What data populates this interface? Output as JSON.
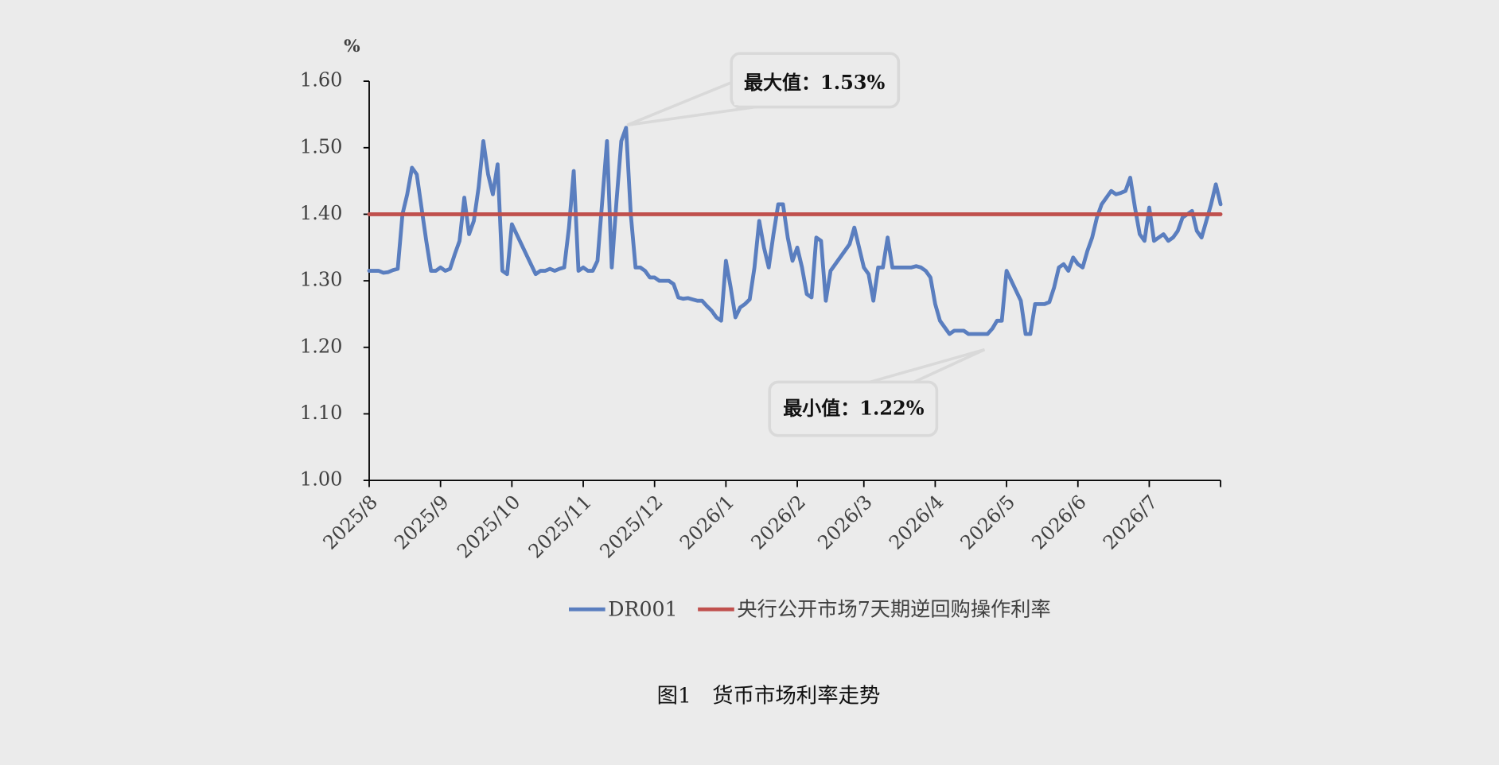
{
  "chart_data": {
    "type": "line",
    "title": "图1　货币市场利率走势",
    "y_unit": "%",
    "ylim": [
      1,
      1.6
    ],
    "yticks": [
      {
        "value": 1,
        "label": "1.00"
      },
      {
        "value": 1.1,
        "label": "1.10"
      },
      {
        "value": 1.2,
        "label": "1.20"
      },
      {
        "value": 1.3,
        "label": "1.30"
      },
      {
        "value": 1.4,
        "label": "1.40"
      },
      {
        "value": 1.5,
        "label": "1.50"
      },
      {
        "value": 1.6,
        "label": "1.60"
      }
    ],
    "grid": false,
    "legend": "bottom",
    "annotations": [
      {
        "text": "最大值：1.53%"
      },
      {
        "text": "最小值：1.22%"
      }
    ],
    "categories": [
      "2025/8",
      null,
      null,
      null,
      null,
      null,
      null,
      null,
      null,
      null,
      null,
      null,
      null,
      null,
      null,
      "2025/9",
      null,
      null,
      null,
      null,
      null,
      null,
      null,
      null,
      null,
      null,
      null,
      null,
      null,
      null,
      "2025/10",
      null,
      null,
      null,
      null,
      null,
      null,
      null,
      null,
      null,
      null,
      null,
      null,
      null,
      null,
      "2025/11",
      null,
      null,
      null,
      null,
      null,
      null,
      null,
      null,
      null,
      null,
      null,
      null,
      null,
      null,
      "2025/12",
      null,
      null,
      null,
      null,
      null,
      null,
      null,
      null,
      null,
      null,
      null,
      null,
      null,
      null,
      "2026/1",
      null,
      null,
      null,
      null,
      null,
      null,
      null,
      null,
      null,
      null,
      null,
      null,
      null,
      null,
      "2026/2",
      null,
      null,
      null,
      null,
      null,
      null,
      null,
      null,
      null,
      null,
      null,
      null,
      null,
      "2026/3",
      null,
      null,
      null,
      null,
      null,
      null,
      null,
      null,
      null,
      null,
      null,
      null,
      null,
      null,
      "2026/4",
      null,
      null,
      null,
      null,
      null,
      null,
      null,
      null,
      null,
      null,
      null,
      null,
      null,
      null,
      "2026/5",
      null,
      null,
      null,
      null,
      null,
      null,
      null,
      null,
      null,
      null,
      null,
      null,
      null,
      null,
      "2026/6",
      null,
      null,
      null,
      null,
      null,
      null,
      null,
      null,
      null,
      null,
      null,
      null,
      null,
      null,
      "2026/7",
      null,
      null,
      null,
      null,
      null,
      null,
      null,
      null,
      null,
      null,
      null,
      null,
      null,
      null,
      null
    ],
    "series": [
      {
        "name": "DR001",
        "color": "#5a7ebf",
        "values": [
          1.315,
          1.315,
          1.315,
          1.312,
          1.313,
          1.316,
          1.318,
          1.4,
          1.43,
          1.47,
          1.46,
          1.41,
          1.36,
          1.315,
          1.315,
          1.32,
          1.315,
          1.318,
          1.34,
          1.36,
          1.425,
          1.37,
          1.39,
          1.44,
          1.51,
          1.46,
          1.43,
          1.475,
          1.315,
          1.31,
          1.385,
          1.37,
          1.355,
          1.34,
          1.325,
          1.31,
          1.315,
          1.315,
          1.318,
          1.315,
          1.318,
          1.32,
          1.38,
          1.465,
          1.315,
          1.32,
          1.315,
          1.315,
          1.33,
          1.42,
          1.51,
          1.32,
          1.42,
          1.51,
          1.53,
          1.4,
          1.32,
          1.32,
          1.315,
          1.305,
          1.305,
          1.3,
          1.3,
          1.3,
          1.295,
          1.275,
          1.273,
          1.274,
          1.272,
          1.27,
          1.27,
          1.262,
          1.255,
          1.245,
          1.24,
          1.33,
          1.29,
          1.245,
          1.26,
          1.265,
          1.272,
          1.32,
          1.39,
          1.35,
          1.32,
          1.37,
          1.415,
          1.415,
          1.365,
          1.33,
          1.35,
          1.32,
          1.28,
          1.275,
          1.365,
          1.36,
          1.27,
          1.315,
          1.325,
          1.335,
          1.345,
          1.355,
          1.38,
          1.35,
          1.32,
          1.31,
          1.27,
          1.32,
          1.32,
          1.365,
          1.32,
          1.32,
          1.32,
          1.32,
          1.32,
          1.322,
          1.32,
          1.315,
          1.305,
          1.265,
          1.24,
          1.23,
          1.22,
          1.225,
          1.225,
          1.225,
          1.22,
          1.22,
          1.22,
          1.22,
          1.22,
          1.228,
          1.24,
          1.24,
          1.315,
          1.3,
          1.285,
          1.27,
          1.22,
          1.22,
          1.265,
          1.265,
          1.265,
          1.268,
          1.29,
          1.32,
          1.325,
          1.315,
          1.335,
          1.325,
          1.32,
          1.345,
          1.365,
          1.395,
          1.415,
          1.425,
          1.435,
          1.43,
          1.432,
          1.435,
          1.455,
          1.41,
          1.37,
          1.36,
          1.41,
          1.36,
          1.365,
          1.37,
          1.36,
          1.365,
          1.375,
          1.395,
          1.4,
          1.405,
          1.375,
          1.365,
          1.39,
          1.415,
          1.445,
          1.415
        ]
      },
      {
        "name": "央行公开市场7天期逆回购操作利率",
        "color": "#c0504d",
        "values": [
          1.4,
          1.4,
          1.4,
          1.4,
          1.4,
          1.4,
          1.4,
          1.4,
          1.4,
          1.4,
          1.4,
          1.4,
          1.4,
          1.4,
          1.4,
          1.4,
          1.4,
          1.4,
          1.4,
          1.4,
          1.4,
          1.4,
          1.4,
          1.4,
          1.4,
          1.4,
          1.4,
          1.4,
          1.4,
          1.4,
          1.4,
          1.4,
          1.4,
          1.4,
          1.4,
          1.4,
          1.4,
          1.4,
          1.4,
          1.4,
          1.4,
          1.4,
          1.4,
          1.4,
          1.4,
          1.4,
          1.4,
          1.4,
          1.4,
          1.4,
          1.4,
          1.4,
          1.4,
          1.4,
          1.4,
          1.4,
          1.4,
          1.4,
          1.4,
          1.4,
          1.4,
          1.4,
          1.4,
          1.4,
          1.4,
          1.4,
          1.4,
          1.4,
          1.4,
          1.4,
          1.4,
          1.4,
          1.4,
          1.4,
          1.4,
          1.4,
          1.4,
          1.4,
          1.4,
          1.4,
          1.4,
          1.4,
          1.4,
          1.4,
          1.4,
          1.4,
          1.4,
          1.4,
          1.4,
          1.4,
          1.4,
          1.4,
          1.4,
          1.4,
          1.4,
          1.4,
          1.4,
          1.4,
          1.4,
          1.4,
          1.4,
          1.4,
          1.4,
          1.4,
          1.4,
          1.4,
          1.4,
          1.4,
          1.4,
          1.4,
          1.4,
          1.4,
          1.4,
          1.4,
          1.4,
          1.4,
          1.4,
          1.4,
          1.4,
          1.4,
          1.4,
          1.4,
          1.4,
          1.4,
          1.4,
          1.4,
          1.4,
          1.4,
          1.4,
          1.4,
          1.4,
          1.4,
          1.4,
          1.4,
          1.4,
          1.4,
          1.4,
          1.4,
          1.4,
          1.4,
          1.4,
          1.4,
          1.4,
          1.4,
          1.4,
          1.4,
          1.4,
          1.4,
          1.4,
          1.4,
          1.4,
          1.4,
          1.4,
          1.4,
          1.4,
          1.4,
          1.4,
          1.4,
          1.4,
          1.4,
          1.4,
          1.4,
          1.4,
          1.4,
          1.4,
          1.4,
          1.4,
          1.4,
          1.4,
          1.4,
          1.4,
          1.4,
          1.4,
          1.4,
          1.4,
          1.4,
          1.4,
          1.4,
          1.4,
          1.4
        ]
      }
    ]
  }
}
